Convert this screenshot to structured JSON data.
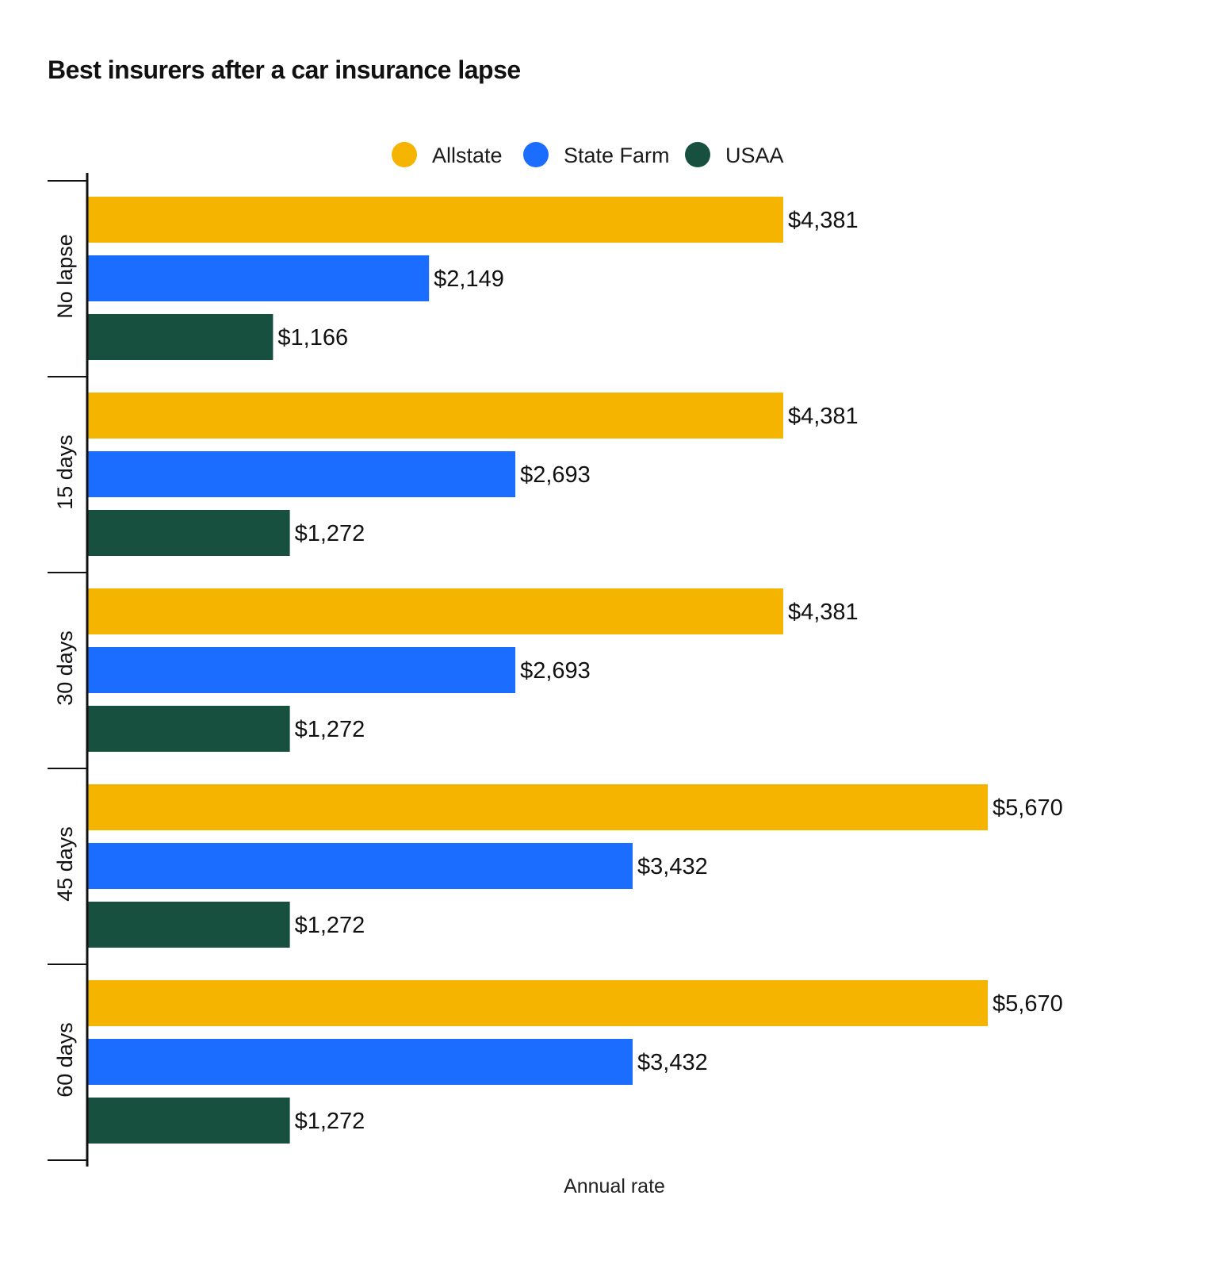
{
  "chart_data": {
    "type": "bar",
    "orientation": "horizontal",
    "title": "Best insurers after a car insurance lapse",
    "xlabel": "Annual rate",
    "ylabel": "",
    "categories": [
      "No lapse",
      "15 days",
      "30 days",
      "45 days",
      "60 days"
    ],
    "series": [
      {
        "name": "Allstate",
        "color": "#F5B400",
        "values": [
          4381,
          4381,
          4381,
          5670,
          5670
        ],
        "labels": [
          "$4,381",
          "$4,381",
          "$4,381",
          "$5,670",
          "$5,670"
        ]
      },
      {
        "name": "State Farm",
        "color": "#1A6DFF",
        "values": [
          2149,
          2693,
          2693,
          3432,
          3432
        ],
        "labels": [
          "$2,149",
          "$2,693",
          "$2,693",
          "$3,432",
          "$3,432"
        ]
      },
      {
        "name": "USAA",
        "color": "#18503F",
        "values": [
          1166,
          1272,
          1272,
          1272,
          1272
        ],
        "labels": [
          "$1,166",
          "$1,272",
          "$1,272",
          "$1,272",
          "$1,272"
        ]
      }
    ],
    "xlim": [
      0,
      5670
    ],
    "grid": false,
    "legend_position": "top-center"
  }
}
